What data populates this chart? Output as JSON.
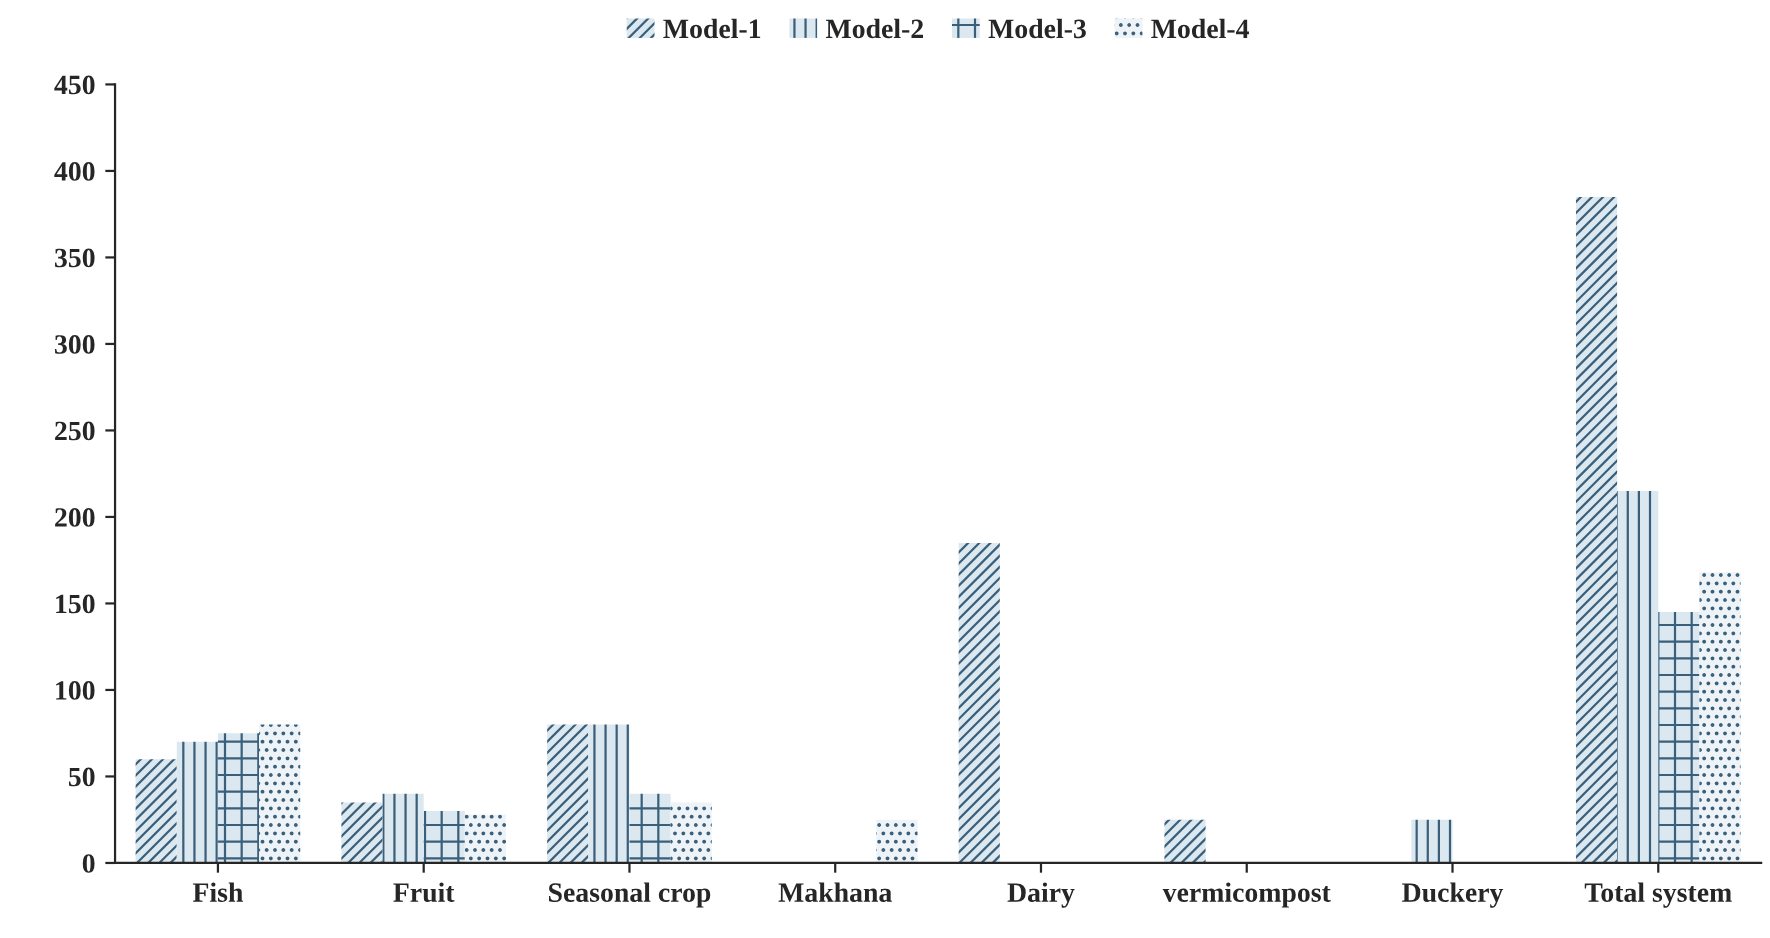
{
  "chart_data": {
    "type": "bar",
    "categories": [
      "Fish",
      "Fruit",
      "Seasonal crop",
      "Makhana",
      "Dairy",
      "vermicompost",
      "Duckery",
      "Total system"
    ],
    "series": [
      {
        "name": "Model-1",
        "color": "#dce8f0",
        "values": [
          60,
          35,
          80,
          null,
          185,
          25,
          null,
          385
        ]
      },
      {
        "name": "Model-2",
        "color": "#dce8f0",
        "values": [
          70,
          40,
          80,
          null,
          null,
          null,
          25,
          215
        ]
      },
      {
        "name": "Model-3",
        "color": "#dce8f0",
        "values": [
          75,
          30,
          40,
          null,
          null,
          null,
          null,
          145
        ]
      },
      {
        "name": "Model-4",
        "color": "#eef3f7",
        "values": [
          80,
          28,
          35,
          25,
          null,
          null,
          null,
          168
        ]
      }
    ],
    "ylim": [
      0,
      450
    ],
    "yticks": [
      0,
      50,
      100,
      150,
      200,
      250,
      300,
      350,
      400,
      450
    ],
    "grid": false,
    "legend": "top"
  }
}
